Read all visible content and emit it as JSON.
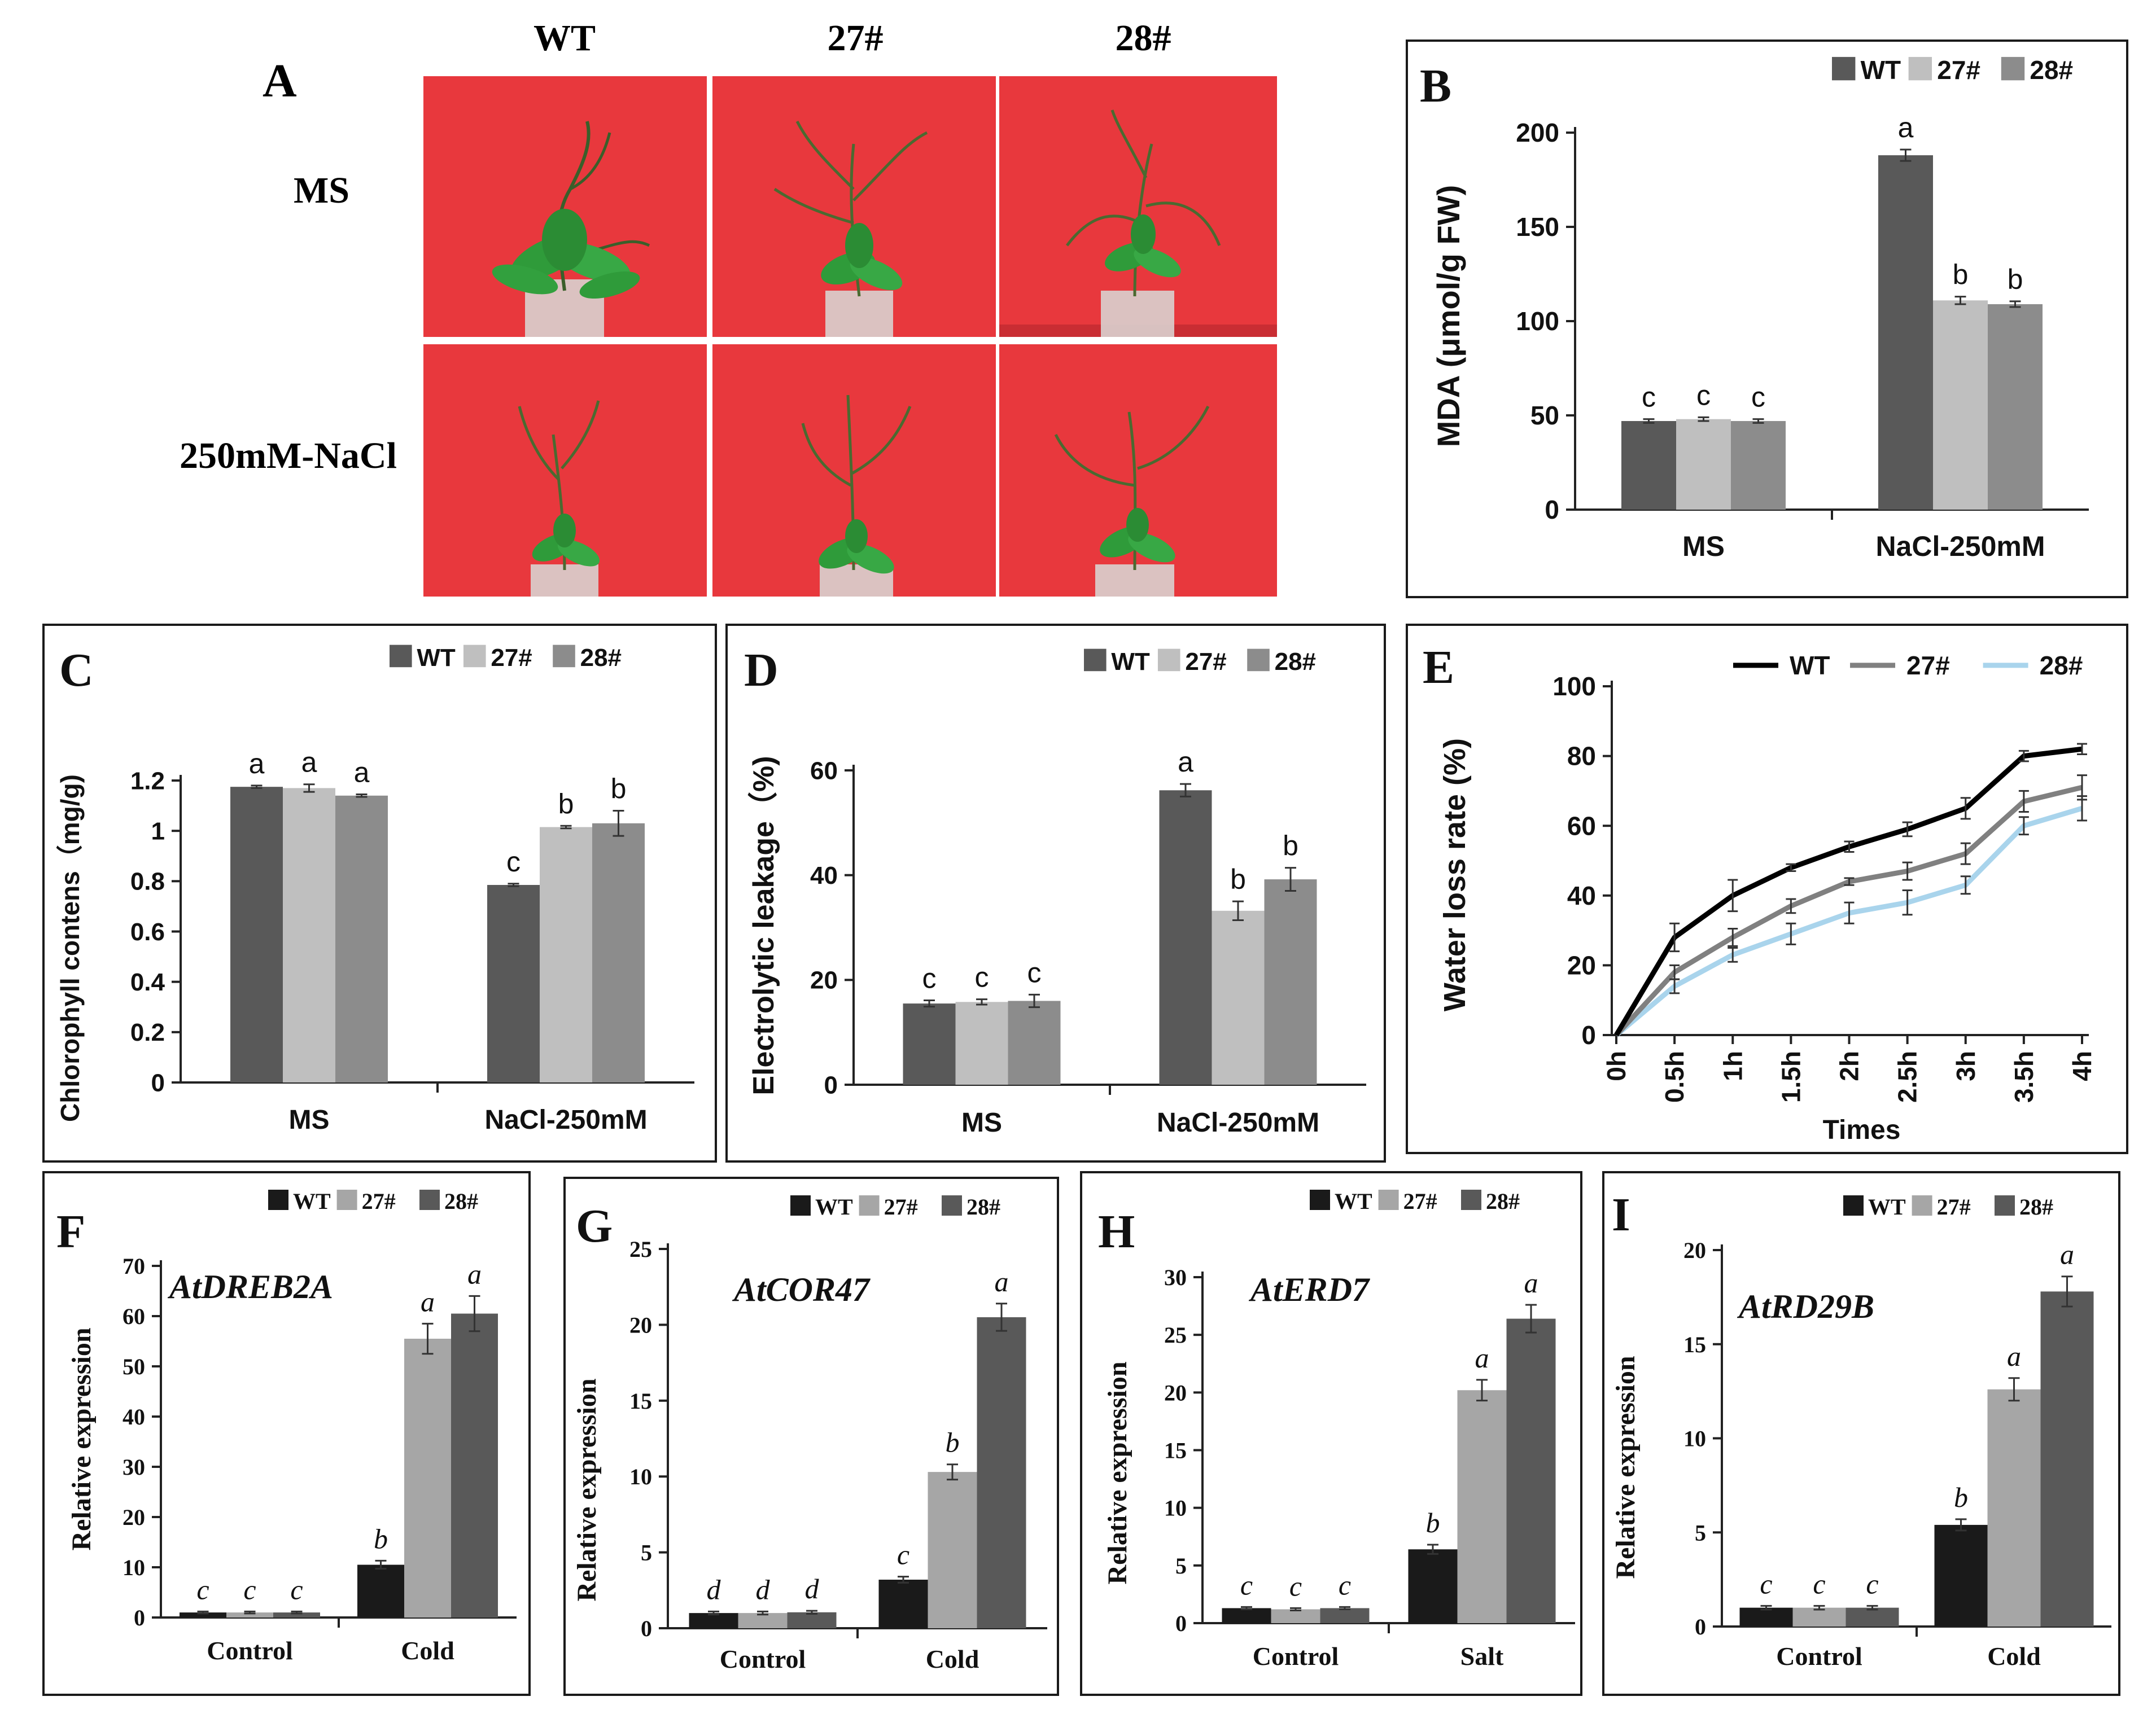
{
  "panelA": {
    "letter": "A",
    "cols": [
      "WT",
      "27#",
      "28#"
    ],
    "rows": [
      "MS",
      "250mM-NaCl"
    ]
  },
  "chart_data": [
    {
      "panel": "B",
      "type": "bar",
      "font": "sans",
      "ylabel": "MDA (μmol/g FW)",
      "categories": [
        "MS",
        "NaCl-250mM"
      ],
      "ylim": [
        0,
        200
      ],
      "yticks": [
        0,
        50,
        100,
        150,
        200
      ],
      "series": [
        {
          "name": "WT",
          "color": "#595959",
          "values": [
            47,
            188
          ],
          "errors": [
            1,
            3
          ]
        },
        {
          "name": "27#",
          "color": "#bfbfbf",
          "values": [
            48,
            111
          ],
          "errors": [
            1,
            2
          ]
        },
        {
          "name": "28#",
          "color": "#8c8c8c",
          "values": [
            47,
            109
          ],
          "errors": [
            1,
            1.5
          ]
        }
      ],
      "letters": [
        [
          "c",
          "a"
        ],
        [
          "c",
          "b"
        ],
        [
          "c",
          "b"
        ]
      ],
      "legend": "top-right"
    },
    {
      "panel": "C",
      "type": "bar",
      "font": "sans",
      "ylabel": "Chlorophyll contens（mg/g)",
      "categories": [
        "MS",
        "NaCl-250mM"
      ],
      "ylim": [
        0,
        1.2
      ],
      "yticks": [
        0,
        0.2,
        0.4,
        0.6,
        0.8,
        1,
        1.2
      ],
      "series": [
        {
          "name": "WT",
          "color": "#595959",
          "values": [
            1.175,
            0.785
          ],
          "errors": [
            0.005,
            0.005
          ]
        },
        {
          "name": "27#",
          "color": "#bfbfbf",
          "values": [
            1.17,
            1.015
          ],
          "errors": [
            0.015,
            0.005
          ]
        },
        {
          "name": "28#",
          "color": "#8c8c8c",
          "values": [
            1.14,
            1.03
          ],
          "errors": [
            0.005,
            0.05
          ]
        }
      ],
      "letters": [
        [
          "a",
          "c"
        ],
        [
          "a",
          "b"
        ],
        [
          "a",
          "b"
        ]
      ],
      "legend": "top-right"
    },
    {
      "panel": "D",
      "type": "bar",
      "font": "sans",
      "ylabel": "Electrolytic leakage（%)",
      "categories": [
        "MS",
        "NaCl-250mM"
      ],
      "ylim": [
        0,
        60
      ],
      "yticks": [
        0,
        20,
        40,
        60
      ],
      "series": [
        {
          "name": "WT",
          "color": "#595959",
          "values": [
            15.5,
            56.2
          ],
          "errors": [
            0.6,
            1.2
          ]
        },
        {
          "name": "27#",
          "color": "#bfbfbf",
          "values": [
            15.8,
            33.2
          ],
          "errors": [
            0.5,
            1.8
          ]
        },
        {
          "name": "28#",
          "color": "#8c8c8c",
          "values": [
            16,
            39.2
          ],
          "errors": [
            1.2,
            2.2
          ]
        }
      ],
      "letters": [
        [
          "c",
          "a"
        ],
        [
          "c",
          "b"
        ],
        [
          "c",
          "b"
        ]
      ],
      "legend": "top-right"
    },
    {
      "panel": "E",
      "type": "line",
      "ylabel": "Water loss rate (%)",
      "xlabel": "Times",
      "categories": [
        "0h",
        "0.5h",
        "1h",
        "1.5h",
        "2h",
        "2.5h",
        "3h",
        "3.5h",
        "4h"
      ],
      "ylim": [
        0,
        100
      ],
      "yticks": [
        0,
        20,
        40,
        60,
        80,
        100
      ],
      "series": [
        {
          "name": "WT",
          "color": "#000000",
          "values": [
            0,
            28,
            40,
            48,
            54,
            59,
            65,
            80,
            82
          ],
          "errors": [
            0,
            4,
            4.5,
            1,
            1.5,
            2,
            3,
            1.5,
            1.5
          ]
        },
        {
          "name": "27#",
          "color": "#808080",
          "values": [
            0,
            18,
            28,
            37,
            44,
            47,
            52,
            67,
            71
          ],
          "errors": [
            0,
            2,
            2.5,
            2,
            1,
            2.5,
            3,
            3,
            3.5
          ]
        },
        {
          "name": "28#",
          "color": "#a9d4ec",
          "values": [
            0,
            14,
            23,
            29,
            35,
            38,
            43,
            60,
            65
          ],
          "errors": [
            0,
            2,
            2,
            3,
            3,
            3.5,
            2.5,
            2.5,
            3.5
          ]
        }
      ],
      "legend": "top-right"
    },
    {
      "panel": "F",
      "type": "bar",
      "font": "serif",
      "gene": "AtDREB2A",
      "ylabel": "Relative expression",
      "categories": [
        "Control",
        "Cold"
      ],
      "ylim": [
        0,
        70
      ],
      "yticks": [
        0,
        10,
        20,
        30,
        40,
        50,
        60,
        70
      ],
      "series": [
        {
          "name": "WT",
          "color": "#1a1a1a",
          "values": [
            1,
            10.5
          ],
          "errors": [
            0.2,
            0.8
          ]
        },
        {
          "name": "27#",
          "color": "#a6a6a6",
          "values": [
            1,
            55.5
          ],
          "errors": [
            0.2,
            3
          ]
        },
        {
          "name": "28#",
          "color": "#595959",
          "values": [
            1,
            60.5
          ],
          "errors": [
            0.2,
            3.5
          ]
        }
      ],
      "letters": [
        [
          "c",
          "b"
        ],
        [
          "c",
          "a"
        ],
        [
          "c",
          "a"
        ]
      ],
      "legend": "top-right"
    },
    {
      "panel": "G",
      "type": "bar",
      "font": "serif",
      "gene": "AtCOR47",
      "ylabel": "Relative expression",
      "categories": [
        "Control",
        "Cold"
      ],
      "ylim": [
        0,
        25
      ],
      "yticks": [
        0,
        5,
        10,
        15,
        20,
        25
      ],
      "series": [
        {
          "name": "WT",
          "color": "#1a1a1a",
          "values": [
            1,
            3.2
          ],
          "errors": [
            0.1,
            0.2
          ]
        },
        {
          "name": "27#",
          "color": "#a6a6a6",
          "values": [
            1,
            10.3
          ],
          "errors": [
            0.1,
            0.5
          ]
        },
        {
          "name": "28#",
          "color": "#595959",
          "values": [
            1.05,
            20.5
          ],
          "errors": [
            0.1,
            0.9
          ]
        }
      ],
      "letters": [
        [
          "d",
          "c"
        ],
        [
          "d",
          "b"
        ],
        [
          "d",
          "a"
        ]
      ],
      "legend": "top-right"
    },
    {
      "panel": "H",
      "type": "bar",
      "font": "serif",
      "gene": "AtERD7",
      "ylabel": "Relative expression",
      "categories": [
        "Control",
        "Salt"
      ],
      "ylim": [
        0,
        30
      ],
      "yticks": [
        0,
        5,
        10,
        15,
        20,
        25,
        30
      ],
      "series": [
        {
          "name": "WT",
          "color": "#1a1a1a",
          "values": [
            1.3,
            6.4
          ],
          "errors": [
            0.1,
            0.4
          ]
        },
        {
          "name": "27#",
          "color": "#a6a6a6",
          "values": [
            1.2,
            20.2
          ],
          "errors": [
            0.1,
            0.9
          ]
        },
        {
          "name": "28#",
          "color": "#595959",
          "values": [
            1.3,
            26.4
          ],
          "errors": [
            0.1,
            1.2
          ]
        }
      ],
      "letters": [
        [
          "c",
          "b"
        ],
        [
          "c",
          "a"
        ],
        [
          "c",
          "a"
        ]
      ],
      "legend": "top-right"
    },
    {
      "panel": "I",
      "type": "bar",
      "font": "serif",
      "gene": "AtRD29B",
      "ylabel": "Relative expression",
      "categories": [
        "Control",
        "Cold"
      ],
      "ylim": [
        0,
        20
      ],
      "yticks": [
        0,
        5,
        10,
        15,
        20
      ],
      "series": [
        {
          "name": "WT",
          "color": "#1a1a1a",
          "values": [
            1,
            5.4
          ],
          "errors": [
            0.1,
            0.3
          ]
        },
        {
          "name": "27#",
          "color": "#a6a6a6",
          "values": [
            1,
            12.6
          ],
          "errors": [
            0.1,
            0.6
          ]
        },
        {
          "name": "28#",
          "color": "#595959",
          "values": [
            1,
            17.8
          ],
          "errors": [
            0.1,
            0.8
          ]
        }
      ],
      "letters": [
        [
          "c",
          "b"
        ],
        [
          "c",
          "a"
        ],
        [
          "c",
          "a"
        ]
      ],
      "legend": "top-right"
    }
  ]
}
